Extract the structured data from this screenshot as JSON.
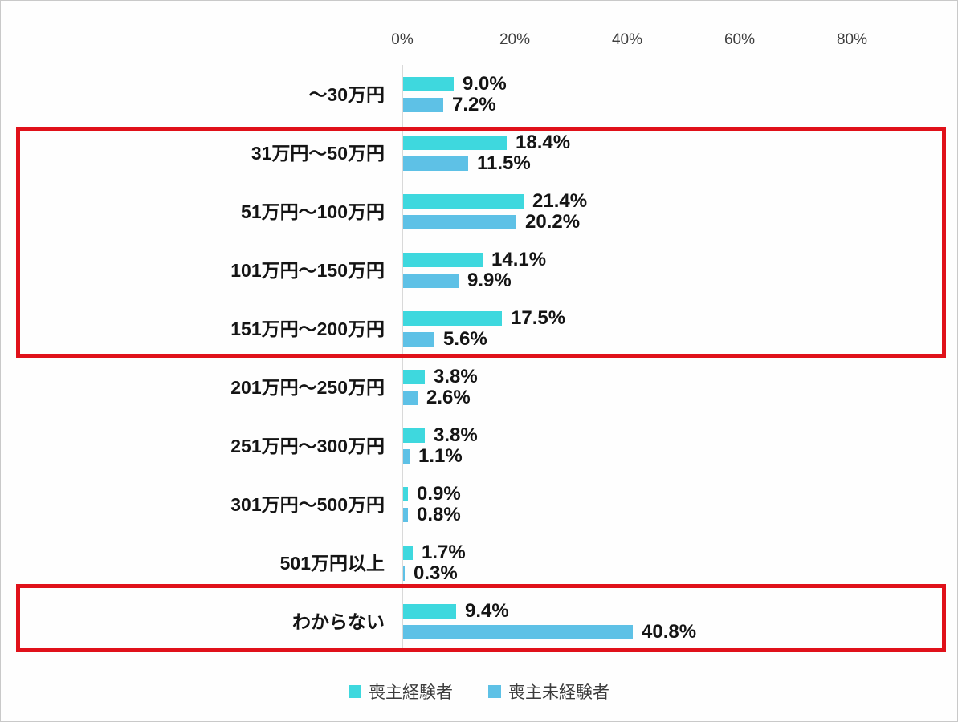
{
  "chart_data": {
    "type": "bar",
    "orientation": "horizontal",
    "title": "",
    "xlabel": "",
    "ylabel": "",
    "x_axis": {
      "ticks": [
        "0%",
        "20%",
        "40%",
        "60%",
        "80%"
      ],
      "min": 0,
      "max": 80,
      "tick_step": 20,
      "grid": false
    },
    "legend_position": "bottom",
    "categories": [
      "～30万円",
      "31万円～50万円",
      "51万円～100万円",
      "101万円～150万円",
      "151万円～200万円",
      "201万円～250万円",
      "251万円～300万円",
      "301万円～500万円",
      "501万円以上",
      "わからない"
    ],
    "series": [
      {
        "name": "喪主経験者",
        "color": "#3ed8de",
        "values": [
          9.0,
          18.4,
          21.4,
          14.1,
          17.5,
          3.8,
          3.8,
          0.9,
          1.7,
          9.4
        ],
        "labels": [
          "9.0%",
          "18.4%",
          "21.4%",
          "14.1%",
          "17.5%",
          "3.8%",
          "3.8%",
          "0.9%",
          "1.7%",
          "9.4%"
        ]
      },
      {
        "name": "喪主未経験者",
        "color": "#5ec1e6",
        "values": [
          7.2,
          11.5,
          20.2,
          9.9,
          5.6,
          2.6,
          1.1,
          0.8,
          0.3,
          40.8
        ],
        "labels": [
          "7.2%",
          "11.5%",
          "20.2%",
          "9.9%",
          "5.6%",
          "2.6%",
          "1.1%",
          "0.8%",
          "0.3%",
          "40.8%"
        ]
      }
    ],
    "annotations": {
      "highlight_color": "#e0111a",
      "highlight_boxes": [
        {
          "from_category": "31万円～50万円",
          "to_category": "151万円～200万円"
        },
        {
          "from_category": "わからない",
          "to_category": "わからない"
        }
      ]
    }
  }
}
